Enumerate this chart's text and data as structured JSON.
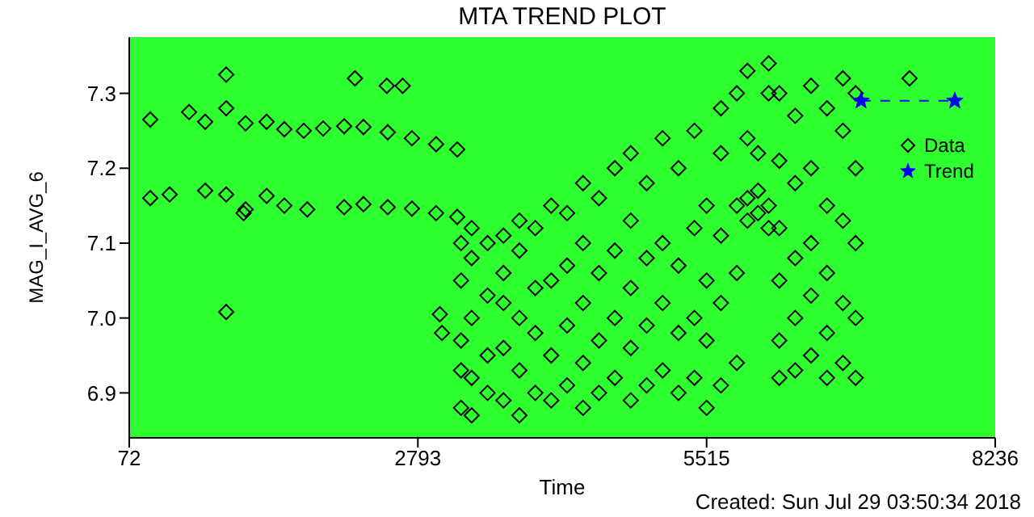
{
  "chart_data": {
    "type": "scatter",
    "title": "MTA TREND PLOT",
    "xlabel": "Time",
    "ylabel": "MAG_I_AVG_6",
    "annotations": [
      "Created: Sun Jul 29 03:50:34 2018"
    ],
    "xlim": [
      72,
      8236
    ],
    "xticks": [
      72,
      2793,
      5515,
      8236
    ],
    "ylim": [
      6.84,
      7.375
    ],
    "yticks": [
      {
        "value": 6.9,
        "label": "6.9"
      },
      {
        "value": 7,
        "label": "7.0"
      },
      {
        "value": 7.1,
        "label": "7.1"
      },
      {
        "value": 7.2,
        "label": "7.2"
      },
      {
        "value": 7.3,
        "label": "7.3"
      }
    ],
    "grid": false,
    "legend": "top right",
    "marker": "diamond",
    "series": [
      {
        "name": "Data",
        "color": "#000000",
        "x": [
          270,
          636,
          788,
          986,
          1169,
          1367,
          1534,
          1717,
          1900,
          2098,
          2280,
          2509,
          2737,
          2965,
          3164,
          270,
          453,
          788,
          986,
          1169,
          1367,
          1534,
          1750,
          2098,
          2280,
          2509,
          2737,
          2965,
          3164,
          986,
          986,
          1150,
          2200,
          3000,
          3020,
          2500,
          2650,
          3200,
          3200,
          3200,
          3200,
          3200,
          3300,
          3300,
          3300,
          3300,
          3300,
          3450,
          3450,
          3450,
          3450,
          3600,
          3600,
          3600,
          3600,
          3600,
          3750,
          3750,
          3750,
          3750,
          3750,
          3900,
          3900,
          3900,
          3900,
          4050,
          4050,
          4050,
          4050,
          4200,
          4200,
          4200,
          4200,
          4350,
          4350,
          4350,
          4350,
          4350,
          4500,
          4500,
          4500,
          4500,
          4650,
          4650,
          4650,
          4650,
          4800,
          4800,
          4800,
          4800,
          4800,
          4950,
          4950,
          4950,
          4950,
          5100,
          5100,
          5100,
          5100,
          5250,
          5250,
          5250,
          5250,
          5400,
          5400,
          5400,
          5400,
          5515,
          5515,
          5515,
          5515,
          5650,
          5650,
          5650,
          5650,
          5650,
          5800,
          5800,
          5800,
          5800,
          5900,
          5900,
          5900,
          5900,
          6000,
          6000,
          6000,
          6100,
          6100,
          6100,
          6100,
          6200,
          6200,
          6200,
          6200,
          6200,
          6200,
          6350,
          6350,
          6350,
          6350,
          6350,
          6500,
          6500,
          6500,
          6500,
          6500,
          6650,
          6650,
          6650,
          6650,
          6650,
          6800,
          6800,
          6800,
          6800,
          6800,
          6920,
          6920,
          6920,
          6920,
          6920,
          7428
        ],
        "values": [
          7.265,
          7.275,
          7.262,
          7.28,
          7.26,
          7.262,
          7.252,
          7.25,
          7.253,
          7.256,
          7.255,
          7.248,
          7.24,
          7.232,
          7.225,
          7.16,
          7.165,
          7.17,
          7.165,
          7.145,
          7.163,
          7.15,
          7.145,
          7.148,
          7.152,
          7.148,
          7.146,
          7.14,
          7.135,
          7.008,
          7.325,
          7.14,
          7.32,
          7.005,
          6.98,
          7.31,
          7.31,
          6.88,
          6.93,
          6.97,
          7.05,
          7.1,
          6.87,
          6.92,
          7.0,
          7.08,
          7.12,
          6.9,
          6.95,
          7.03,
          7.1,
          6.89,
          6.96,
          7.02,
          7.06,
          7.11,
          6.87,
          6.93,
          7.0,
          7.09,
          7.13,
          6.9,
          6.98,
          7.04,
          7.12,
          6.89,
          6.95,
          7.05,
          7.15,
          6.91,
          6.99,
          7.07,
          7.14,
          6.88,
          6.94,
          7.02,
          7.1,
          7.18,
          6.9,
          6.97,
          7.06,
          7.16,
          6.92,
          7.0,
          7.09,
          7.2,
          6.89,
          6.96,
          7.04,
          7.13,
          7.22,
          6.91,
          6.99,
          7.08,
          7.18,
          6.93,
          7.02,
          7.1,
          7.24,
          6.9,
          6.98,
          7.07,
          7.2,
          6.92,
          7.0,
          7.12,
          7.25,
          6.88,
          6.97,
          7.05,
          7.15,
          6.91,
          7.02,
          7.11,
          7.22,
          7.28,
          6.94,
          7.06,
          7.15,
          7.3,
          7.13,
          7.16,
          7.24,
          7.33,
          7.14,
          7.17,
          7.22,
          7.12,
          7.15,
          7.3,
          7.34,
          6.92,
          6.97,
          7.05,
          7.12,
          7.21,
          7.3,
          6.93,
          7.0,
          7.08,
          7.18,
          7.27,
          6.95,
          7.03,
          7.1,
          7.2,
          7.31,
          6.92,
          6.98,
          7.06,
          7.15,
          7.28,
          6.94,
          7.02,
          7.13,
          7.25,
          7.32,
          6.92,
          7.0,
          7.1,
          7.2,
          7.3,
          7.32
        ]
      },
      {
        "name": "Trend",
        "type": "line",
        "color": "#0000ff",
        "marker": "star",
        "line_style": "dashed",
        "x": [
          6971,
          7855
        ],
        "values": [
          7.29,
          7.29
        ]
      }
    ]
  }
}
